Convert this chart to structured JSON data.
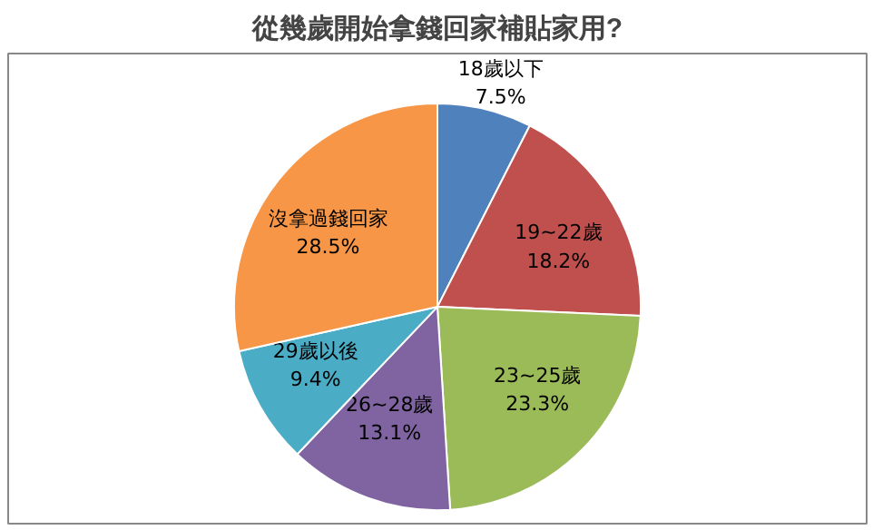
{
  "chart_data": {
    "type": "pie",
    "title": "從幾歲開始拿錢回家補貼家用?",
    "categories": [
      "18歲以下",
      "19~22歲",
      "23~25歲",
      "26~28歲",
      "29歲以後",
      "沒拿過錢回家"
    ],
    "values": [
      7.5,
      18.2,
      23.3,
      13.1,
      9.4,
      28.5
    ],
    "value_labels": [
      "7.5%",
      "18.2%",
      "23.3%",
      "13.1%",
      "9.4%",
      "28.5%"
    ],
    "colors": [
      "#4f81bd",
      "#c0504d",
      "#9bbb59",
      "#8064a2",
      "#4bacc6",
      "#f79646"
    ],
    "legend": false
  }
}
